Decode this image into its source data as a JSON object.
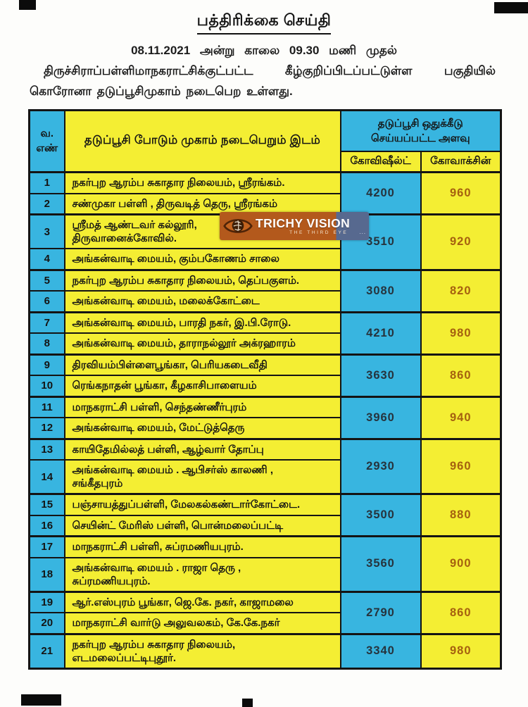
{
  "page": {
    "title": "பத்திரிக்கை செய்தி",
    "intro_line1": "08.11.2021 அன்று காலை 09.30 மணி முதல்",
    "intro_line2": "திருச்சிராப்பள்ளிமாநகராட்சிக்குட்பட்ட கீழ்குறிப்பிடப்பட்டுள்ள பகுதியில்",
    "intro_line3": "கொரோனா தடுப்பூசிமுகாம் நடைபெற உள்ளது."
  },
  "watermark": {
    "name": "TRICHY VISION",
    "tagline": "THE THIRD EYE",
    "dots": "...",
    "colors": {
      "banner_orange": "#b3591c",
      "banner_navy": "#57698f"
    }
  },
  "table": {
    "headers": {
      "sno": "வ.\nஎண்",
      "place": "தடுப்பூசி போடும் முகாம் நடைபெறும் இடம்",
      "allocation": "தடுப்பூசி ஒதுக்கீடு\nசெய்யப்பட்ட அளவு",
      "covishield": "கோவிஷீல்ட்",
      "covaxin": "கோவாக்சின்"
    },
    "colors": {
      "blue": "#38b5e0",
      "yellow": "#f4ee33",
      "border": "#141414",
      "covishield_text": "#26333d",
      "covaxin_text": "#a5600f"
    },
    "groups": [
      {
        "covishield": "4200",
        "covaxin": "960",
        "rows": [
          {
            "no": "1",
            "place": "நகர்புற ஆரம்ப சுகாதார நிலையம், ஸ்ரீரங்கம்."
          },
          {
            "no": "2",
            "place": "சண்முகா பள்ளி , திருவடித் தெரு, ஸ்ரீரங்கம்"
          }
        ]
      },
      {
        "covishield": "3510",
        "covaxin": "920",
        "rows": [
          {
            "no": "3",
            "place": "ஸ்ரீமத் ஆண்டவர் கல்லூரி,\nதிருவானைக்கோவில்."
          },
          {
            "no": "4",
            "place": "அங்கன்வாடி மையம், கும்பகோணம் சாலை"
          }
        ]
      },
      {
        "covishield": "3080",
        "covaxin": "820",
        "rows": [
          {
            "no": "5",
            "place": "நகர்புற ஆரம்ப சுகாதார நிலையம், தெப்பகுளம்."
          },
          {
            "no": "6",
            "place": "அங்கன்வாடி மையம், மலைக்கோட்டை"
          }
        ]
      },
      {
        "covishield": "4210",
        "covaxin": "980",
        "rows": [
          {
            "no": "7",
            "place": "அங்கன்வாடி மையம், பாரதி நகர், இ.பி.ரோடு."
          },
          {
            "no": "8",
            "place": "அங்கன்வாடி மையம், தாராநல்லூர் அக்ரஹாரம்"
          }
        ]
      },
      {
        "covishield": "3630",
        "covaxin": "860",
        "rows": [
          {
            "no": "9",
            "place": "திரவியம்பிள்ளைபூங்கா, பெரியகடைவீதி"
          },
          {
            "no": "10",
            "place": "ரெங்கநாதன் பூங்கா, கீழகாசிபாளையம்"
          }
        ]
      },
      {
        "covishield": "3960",
        "covaxin": "940",
        "rows": [
          {
            "no": "11",
            "place": "மாநகராட்சி பள்ளி, செந்தண்ணீர்புரம்"
          },
          {
            "no": "12",
            "place": "அங்கன்வாடி மையம், மேட்டுத்தெரு"
          }
        ]
      },
      {
        "covishield": "2930",
        "covaxin": "960",
        "rows": [
          {
            "no": "13",
            "place": "காயிதேமில்லத் பள்ளி, ஆழ்வார் தோப்பு"
          },
          {
            "no": "14",
            "place": "அங்கன்வாடி மையம் .  ஆபிசர்ஸ் காலணி ,\nசங்கீதபுரம்"
          }
        ]
      },
      {
        "covishield": "3500",
        "covaxin": "880",
        "rows": [
          {
            "no": "15",
            "place": "பஞ்சாயத்துப்பள்ளி, மேலகல்கண்டார்கோட்டை."
          },
          {
            "no": "16",
            "place": "செயின்ட் மேரிஸ் பள்ளி, பொன்மலைப்பட்டி"
          }
        ]
      },
      {
        "covishield": "3560",
        "covaxin": "900",
        "rows": [
          {
            "no": "17",
            "place": "மாநகராட்சி பள்ளி, சுப்ரமணியபுரம்."
          },
          {
            "no": "18",
            "place": "அங்கன்வாடி மையம் .  ராஜா தெரு ,\nசுப்ரமணியபுரம்."
          }
        ]
      },
      {
        "covishield": "2790",
        "covaxin": "860",
        "rows": [
          {
            "no": "19",
            "place": "ஆர்.எஸ்புரம் பூங்கா, ஜெ.கே. நகர், காஜாமலை"
          },
          {
            "no": "20",
            "place": "மாநகராட்சி வார்டு அலுவலகம், கே.கே.நகர்"
          }
        ]
      },
      {
        "covishield": "3340",
        "covaxin": "980",
        "rows": [
          {
            "no": "21",
            "place": "நகர்புற ஆரம்ப சுகாதார நிலையம்,\nஎடமலைப்பட்டிபுதூர்."
          }
        ]
      }
    ]
  }
}
